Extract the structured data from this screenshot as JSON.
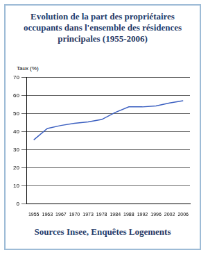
{
  "chart_data": {
    "type": "line",
    "title": "Evolution de la part des propriétaires occupants dans l'ensemble des résidences principales (1955-2006)",
    "y_label": "Taux (%)",
    "source": "Sources Insee, Enquêtes Logements",
    "categories": [
      "1955",
      "1963",
      "1967",
      "1970",
      "1973",
      "1978",
      "1984",
      "1988",
      "1992",
      "1996",
      "2002",
      "2006"
    ],
    "values": [
      35.5,
      41.8,
      43.5,
      44.7,
      45.5,
      46.8,
      50.7,
      53.8,
      53.8,
      54.3,
      56.0,
      57.2
    ],
    "color": "#3b5fc0",
    "ylim": [
      0,
      70
    ],
    "yticks": [
      0,
      10,
      20,
      30,
      40,
      50,
      60,
      70
    ],
    "grid": true
  }
}
